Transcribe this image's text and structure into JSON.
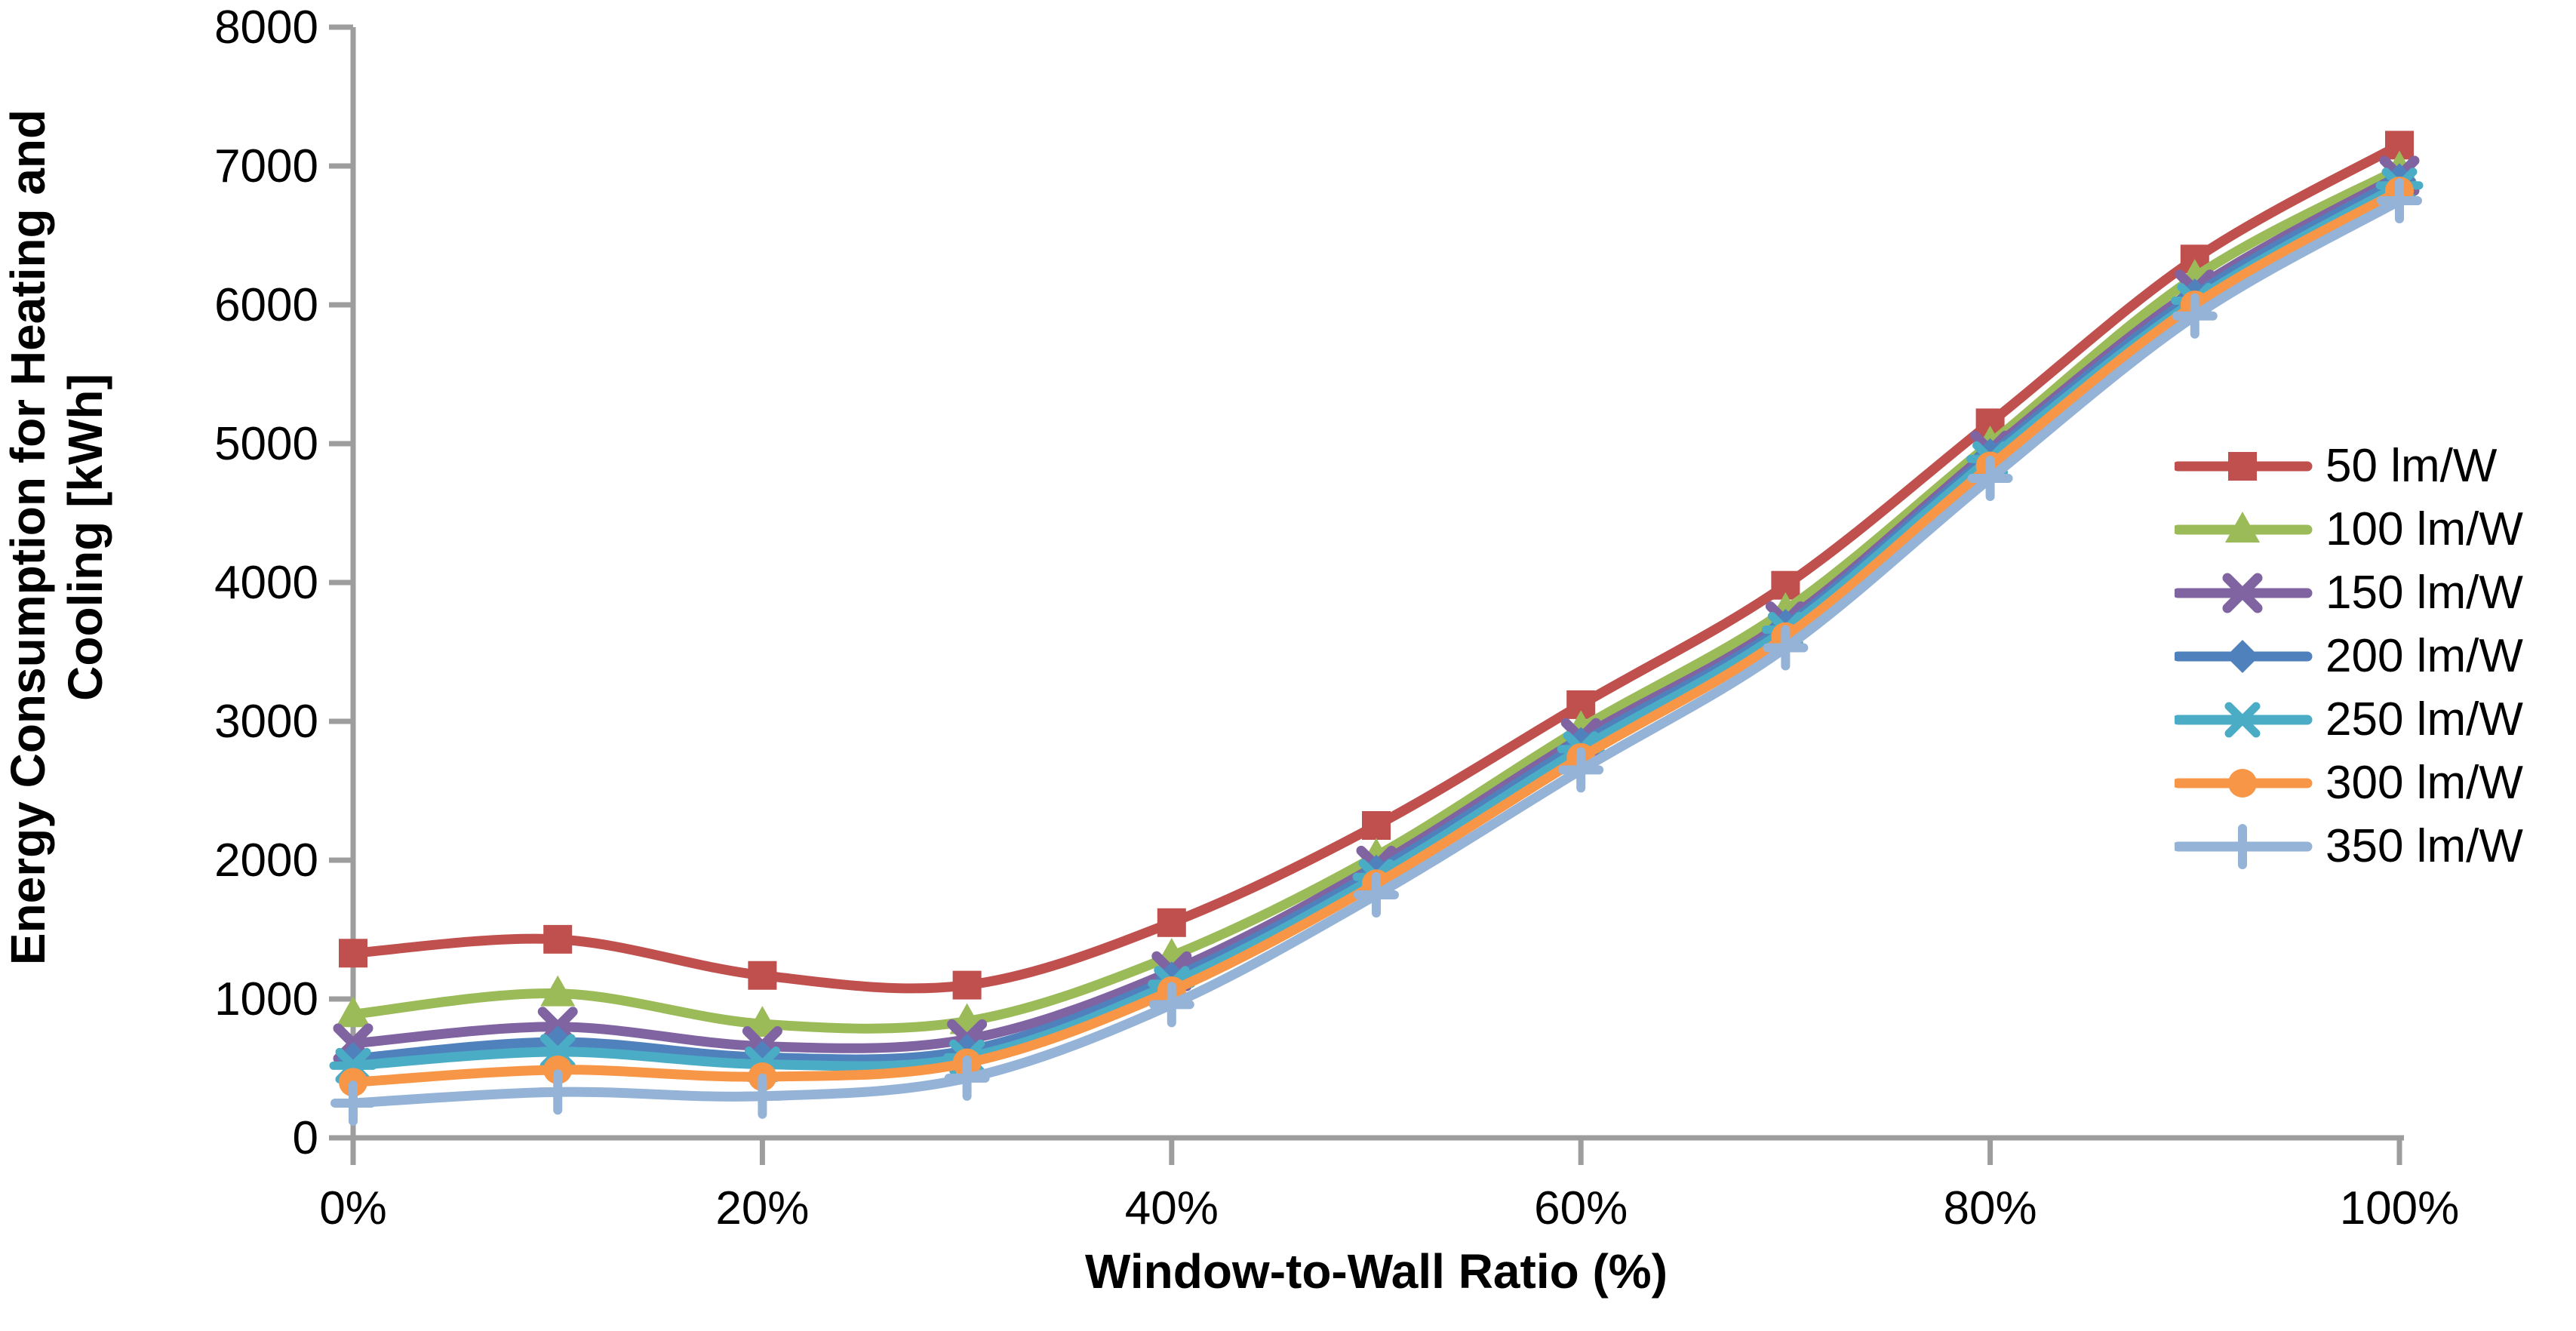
{
  "chart_data": {
    "type": "line",
    "title": "",
    "xlabel": "Window-to-Wall Ratio (%)",
    "ylabel": "Energy Consumption for Heating and Cooling [kWh]",
    "ylabel_lines": [
      "Energy Consumption for Heating and",
      "Cooling [kWh]"
    ],
    "x_percent": [
      0,
      10,
      20,
      30,
      40,
      50,
      60,
      70,
      80,
      90,
      100
    ],
    "xtick_percent": [
      0,
      20,
      40,
      60,
      80,
      100
    ],
    "xtick_labels": [
      "0%",
      "20%",
      "40%",
      "60%",
      "80%",
      "100%"
    ],
    "yticks": [
      0,
      1000,
      2000,
      3000,
      4000,
      5000,
      6000,
      7000,
      8000
    ],
    "ytick_labels": [
      "0",
      "1000",
      "2000",
      "3000",
      "4000",
      "5000",
      "6000",
      "7000",
      "8000"
    ],
    "ylim": [
      0,
      8000
    ],
    "grid": false,
    "legend_position": "right",
    "axis_color": "#9D9D9D",
    "text_color": "#000000",
    "smoothed_lines": true,
    "series": [
      {
        "name": "50 lm/W",
        "color": "#C0504D",
        "marker": "square",
        "values": [
          1330,
          1430,
          1170,
          1100,
          1550,
          2250,
          3120,
          3980,
          5150,
          6330,
          7150
        ]
      },
      {
        "name": "100 lm/W",
        "color": "#9BBB59",
        "marker": "triangle",
        "values": [
          890,
          1040,
          820,
          840,
          1310,
          2030,
          2950,
          3800,
          5000,
          6200,
          6980
        ]
      },
      {
        "name": "150 lm/W",
        "color": "#8064A2",
        "marker": "x",
        "values": [
          680,
          800,
          660,
          710,
          1200,
          1960,
          2880,
          3720,
          4950,
          6110,
          6930
        ]
      },
      {
        "name": "200 lm/W",
        "color": "#4F81BD",
        "marker": "diamond",
        "values": [
          570,
          690,
          580,
          630,
          1150,
          1920,
          2840,
          3690,
          4920,
          6070,
          6900
        ]
      },
      {
        "name": "250 lm/W",
        "color": "#4BACC6",
        "marker": "star",
        "values": [
          520,
          620,
          530,
          580,
          1110,
          1880,
          2800,
          3660,
          4890,
          6030,
          6860
        ]
      },
      {
        "name": "300 lm/W",
        "color": "#F79646",
        "marker": "circle",
        "values": [
          400,
          490,
          440,
          540,
          1060,
          1830,
          2740,
          3610,
          4840,
          6000,
          6820
        ]
      },
      {
        "name": "350 lm/W",
        "color": "#95B3D7",
        "marker": "plus",
        "values": [
          250,
          330,
          300,
          430,
          960,
          1750,
          2650,
          3530,
          4750,
          5920,
          6750
        ]
      }
    ]
  }
}
